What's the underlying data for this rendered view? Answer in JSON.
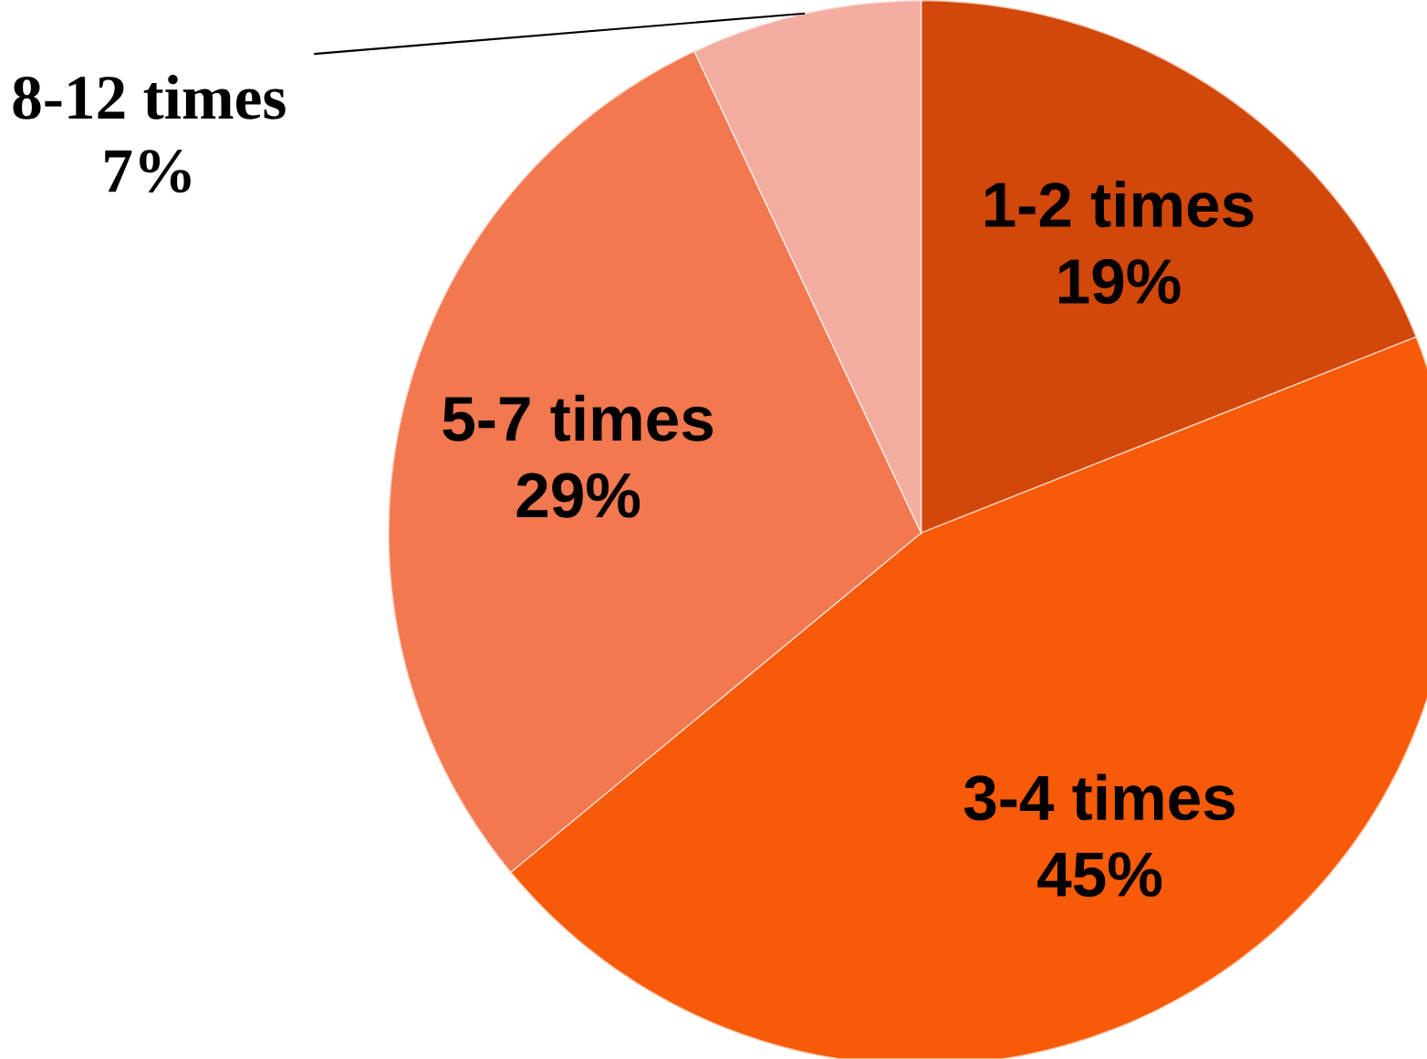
{
  "chart_data": {
    "type": "pie",
    "categories": [
      "1-2 times",
      "3-4 times",
      "5-7 times",
      "8-12 times"
    ],
    "values": [
      19,
      45,
      29,
      7
    ],
    "value_labels": [
      "19%",
      "45%",
      "29%",
      "7%"
    ],
    "colors": [
      "#d2470a",
      "#f75a08",
      "#f27850",
      "#f2ada0"
    ]
  }
}
